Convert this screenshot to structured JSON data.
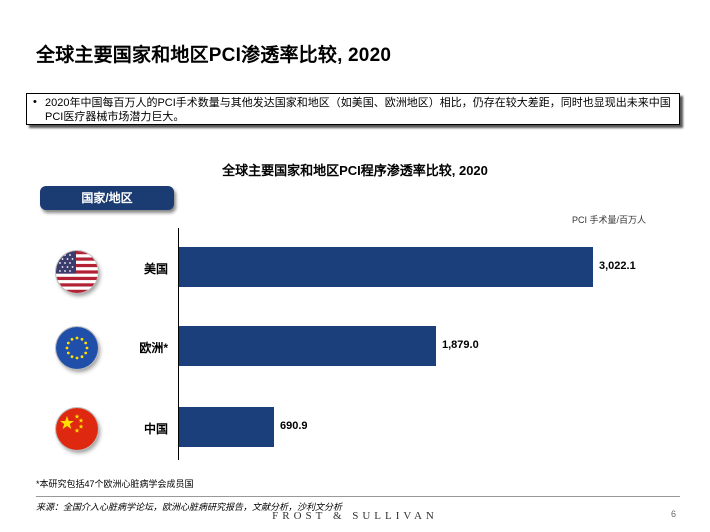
{
  "page_title": "全球主要国家和地区PCI渗透率比较, 2020",
  "summary": {
    "bullet": "•",
    "text": "2020年中国每百万人的PCI手术数量与其他发达国家和地区（如美国、欧洲地区）相比，仍存在较大差距，同时也显现出未来中国PCI医疗器械市场潜力巨大。"
  },
  "region_header": "国家/地区",
  "footnote": "*本研究包括47个欧洲心脏病学会成员国",
  "source": "来源：全国介入心脏病学论坛，欧洲心脏病研究报告，文献分析，沙利文分析",
  "brand": "FROST & SULLIVAN",
  "page_number": "6",
  "flags": [
    "us-flag-icon",
    "eu-flag-icon",
    "china-flag-icon"
  ],
  "colors": {
    "bar": "#1b3f7a",
    "header_bg": "#1a3c73"
  },
  "chart_data": {
    "type": "bar",
    "orientation": "horizontal",
    "title": "全球主要国家和地区PCI程序渗透率比较, 2020",
    "unit_label": "PCI 手术量/百万人",
    "categories": [
      "美国",
      "欧洲*",
      "中国"
    ],
    "values": [
      3022.1,
      1879.0,
      690.9
    ],
    "value_labels": [
      "3,022.1",
      "1,879.0",
      "690.9"
    ],
    "xlim": [
      0,
      3300
    ],
    "grid": false
  }
}
